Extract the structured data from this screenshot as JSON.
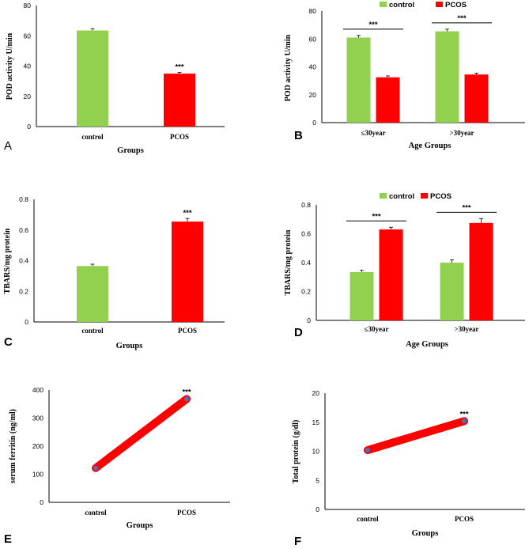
{
  "colors": {
    "control": "#92d050",
    "pcos": "#ff0000",
    "marker": "#4472c4"
  },
  "chart_data": [
    {
      "id": "A",
      "type": "bar",
      "panel_label": "A",
      "title": "",
      "xlabel": "Groups",
      "ylabel": "POD activity U/min",
      "ylim": [
        0,
        80
      ],
      "yticks": [
        "0",
        "20",
        "40",
        "60",
        "80"
      ],
      "categories": [
        "control",
        "PCOS"
      ],
      "values": [
        63.5,
        35
      ],
      "errors": [
        1.2,
        0.8
      ],
      "significance": [
        "",
        "***"
      ]
    },
    {
      "id": "B",
      "type": "bar",
      "panel_label": "B",
      "title": "",
      "xlabel": "Age Groups",
      "ylabel": "POD activity U/min",
      "ylim": [
        0,
        80
      ],
      "yticks": [
        "0",
        "20",
        "40",
        "60",
        "80"
      ],
      "categories": [
        "≤30year",
        ">30year"
      ],
      "legend": [
        "control",
        "PCOS"
      ],
      "legend_position": "top-left",
      "series": [
        {
          "name": "control",
          "values": [
            61,
            65.5
          ],
          "errors": [
            1.5,
            1.5
          ]
        },
        {
          "name": "PCOS",
          "values": [
            32.5,
            34.5
          ],
          "errors": [
            1,
            1
          ]
        }
      ],
      "significance": [
        "***",
        "***"
      ]
    },
    {
      "id": "C",
      "type": "bar",
      "panel_label": "C",
      "title": "",
      "xlabel": "Groups",
      "ylabel": "TBARS/mg protein",
      "ylim": [
        0,
        0.8
      ],
      "yticks": [
        "0",
        "0.2",
        "0.4",
        "0.6",
        "0.8"
      ],
      "categories": [
        "control",
        "PCOS"
      ],
      "values": [
        0.365,
        0.655
      ],
      "errors": [
        0.012,
        0.02
      ],
      "significance": [
        "",
        "***"
      ]
    },
    {
      "id": "D",
      "type": "bar",
      "panel_label": "D",
      "title": "",
      "xlabel": "Age Groups",
      "ylabel": "TBARS/mg protein",
      "ylim": [
        0,
        0.8
      ],
      "yticks": [
        "0",
        "0.2",
        "0.4",
        "0.6",
        "0.8"
      ],
      "categories": [
        "≤30year",
        ">30year"
      ],
      "legend": [
        "control",
        "PCOS"
      ],
      "legend_position": "top-center",
      "series": [
        {
          "name": "control",
          "values": [
            0.335,
            0.4
          ],
          "errors": [
            0.012,
            0.02
          ]
        },
        {
          "name": "PCOS",
          "values": [
            0.63,
            0.675
          ],
          "errors": [
            0.015,
            0.03
          ]
        }
      ],
      "significance": [
        "***",
        "***"
      ]
    },
    {
      "id": "E",
      "type": "line",
      "panel_label": "E",
      "title": "",
      "xlabel": "Groups",
      "ylabel": "serum ferritin (ng/ml)",
      "ylim": [
        0,
        400
      ],
      "yticks": [
        "0",
        "100",
        "200",
        "300",
        "400"
      ],
      "categories": [
        "control",
        "PCOS"
      ],
      "values": [
        122,
        368
      ],
      "significance": [
        "",
        "***"
      ]
    },
    {
      "id": "F",
      "type": "line",
      "panel_label": "F",
      "title": "",
      "xlabel": "Groups",
      "ylabel": "Total protein (g/dl)",
      "ylim": [
        0,
        20
      ],
      "yticks": [
        "0",
        "5",
        "10",
        "15",
        "20"
      ],
      "categories": [
        "control",
        "PCOS"
      ],
      "values": [
        10.2,
        15.2
      ],
      "significance": [
        "",
        "***"
      ]
    }
  ]
}
